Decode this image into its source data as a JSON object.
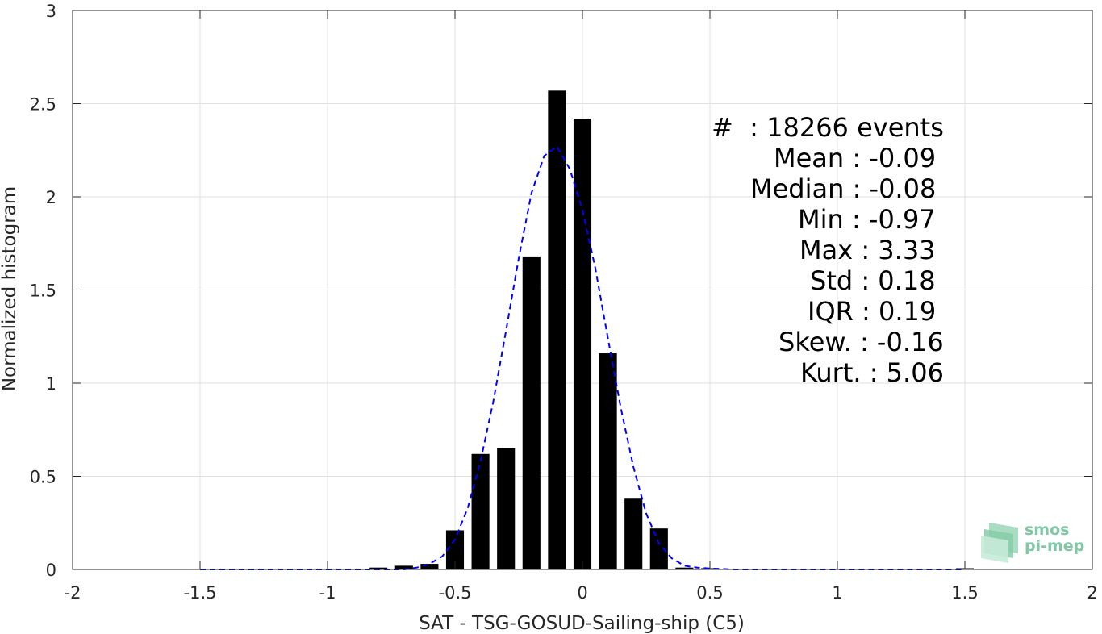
{
  "chart_data": {
    "type": "bar",
    "xlabel": "SAT - TSG-GOSUD-Sailing-ship (C5)",
    "ylabel": "Normalized histogram",
    "xlim": [
      -2,
      2
    ],
    "ylim": [
      0,
      3
    ],
    "xticks": [
      -2,
      -1.5,
      -1,
      -0.5,
      0,
      0.5,
      1,
      1.5,
      2
    ],
    "xtick_labels": [
      "-2",
      "-1.5",
      "-1",
      "-0.5",
      "0",
      "0.5",
      "1",
      "1.5",
      "2"
    ],
    "yticks": [
      0,
      0.5,
      1,
      1.5,
      2,
      2.5,
      3
    ],
    "ytick_labels": [
      "0",
      "0.5",
      "1",
      "1.5",
      "2",
      "2.5",
      "3"
    ],
    "grid": true,
    "bar_width": 0.07,
    "bars": {
      "x": [
        -0.8,
        -0.7,
        -0.6,
        -0.5,
        -0.4,
        -0.3,
        -0.2,
        -0.1,
        0.0,
        0.1,
        0.2,
        0.3,
        0.4,
        0.5,
        1.5
      ],
      "values": [
        0.01,
        0.02,
        0.03,
        0.21,
        0.62,
        0.65,
        1.68,
        2.57,
        2.42,
        1.16,
        0.38,
        0.22,
        0.01,
        0.005,
        0.002
      ],
      "color": "#000000"
    },
    "fit_curve": {
      "style": "dashed",
      "color": "#0000ff",
      "x": [
        -1.5,
        -0.8,
        -0.7,
        -0.65,
        -0.6,
        -0.55,
        -0.5,
        -0.45,
        -0.4,
        -0.35,
        -0.3,
        -0.25,
        -0.2,
        -0.15,
        -0.1,
        -0.05,
        0.0,
        0.05,
        0.1,
        0.15,
        0.2,
        0.25,
        0.3,
        0.35,
        0.4,
        0.45,
        0.5,
        0.6,
        1.0,
        1.5
      ],
      "y": [
        0.0,
        0.0,
        0.0,
        0.01,
        0.03,
        0.07,
        0.16,
        0.33,
        0.58,
        0.9,
        1.28,
        1.67,
        2.02,
        2.22,
        2.27,
        2.15,
        1.93,
        1.62,
        1.24,
        0.87,
        0.55,
        0.3,
        0.14,
        0.06,
        0.02,
        0.01,
        0.005,
        0.0,
        0.0,
        0.0
      ]
    },
    "annotations": [
      {
        "label": "#  : ",
        "value": "18266 events"
      },
      {
        "label": "Mean : ",
        "value": "-0.09"
      },
      {
        "label": "Median : ",
        "value": "-0.08"
      },
      {
        "label": "Min : ",
        "value": "-0.97"
      },
      {
        "label": "Max : ",
        "value": "3.33"
      },
      {
        "label": "Std : ",
        "value": "0.18"
      },
      {
        "label": "IQR : ",
        "value": "0.19"
      },
      {
        "label": "Skew. : ",
        "value": "-0.16"
      },
      {
        "label": "Kurt. : ",
        "value": "5.06"
      }
    ]
  },
  "logo": {
    "line1": "smos",
    "line2": "pi-mep",
    "color": "#7fc7a5"
  }
}
